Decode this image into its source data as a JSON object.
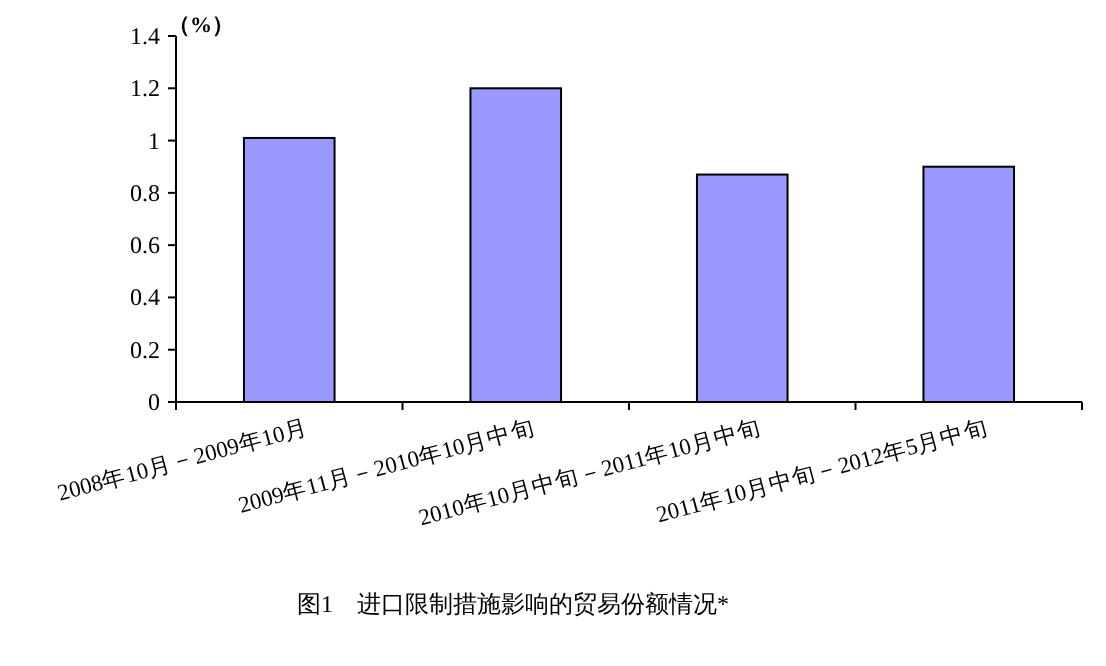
{
  "chart_data": {
    "type": "bar",
    "title": "图1　进口限制措施影响的贸易份额情况*",
    "ylabel": "（%）",
    "categories": [
      "2008年10月－2009年10月",
      "2009年11月－2010年10月中旬",
      "2010年10月中旬－2011年10月中旬",
      "2011年10月中旬－2012年5月中旬"
    ],
    "values": [
      1.01,
      1.2,
      0.87,
      0.9
    ],
    "color": "#9999ff",
    "ylim": [
      0,
      1.4
    ],
    "yticks": [
      0,
      0.2,
      0.4,
      0.6,
      0.8,
      1,
      1.2,
      1.4
    ],
    "grid": false
  }
}
